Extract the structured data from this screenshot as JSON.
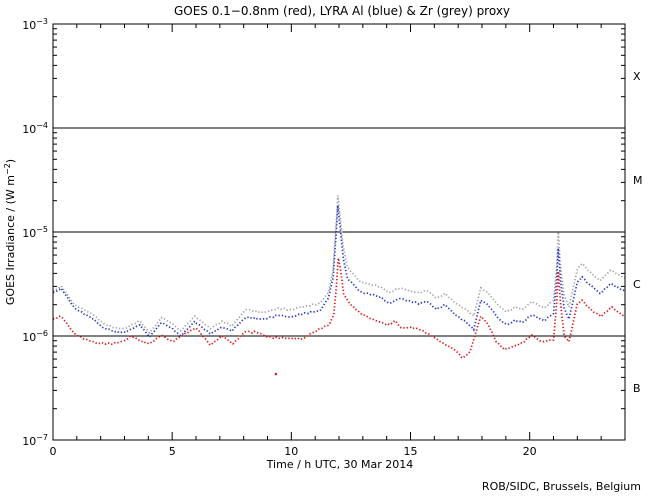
{
  "footer": "ROB/SIDC, Brussels, Belgium",
  "chart_data": {
    "type": "line",
    "style": "dotted",
    "title": "GOES 0.1−0.8nm (red), LYRA Al (blue) & Zr (grey) proxy",
    "xlabel": "Time / h UTC, 30 Mar 2014",
    "ylabel": "GOES Irradiance / (W m−2)",
    "ylabel_parts": {
      "pre": "GOES Irradiance / (W m",
      "sup": "−2",
      "post": ")"
    },
    "x_range": [
      0,
      24
    ],
    "y_range": [
      1e-07,
      0.001
    ],
    "x_major_ticks": [
      0,
      5,
      10,
      15,
      20
    ],
    "x_minor_step": 1,
    "y_scale": "log",
    "y_tick_base": "10",
    "y_tick_exponents": [
      "−3",
      "−4",
      "−5",
      "−6",
      "−7"
    ],
    "reference_lines": [
      0.0001,
      1e-05,
      1e-06
    ],
    "flare_class_labels": [
      {
        "label": "X",
        "band": [
          0.0001,
          0.001
        ]
      },
      {
        "label": "M",
        "band": [
          1e-05,
          0.0001
        ]
      },
      {
        "label": "C",
        "band": [
          1e-06,
          1e-05
        ]
      },
      {
        "label": "B",
        "band": [
          1e-07,
          1e-06
        ]
      }
    ],
    "grid": false,
    "series": [
      {
        "name": "LYRA Zr proxy",
        "color_key": "grey",
        "color": "#a3a3a3",
        "points": [
          [
            0,
            2.7e-06
          ],
          [
            0.35,
            3e-06
          ],
          [
            0.9,
            2e-06
          ],
          [
            1.7,
            1.6e-06
          ],
          [
            2.1,
            1.32e-06
          ],
          [
            2.6,
            1.2e-06
          ],
          [
            3.0,
            1.17e-06
          ],
          [
            3.3,
            1.28e-06
          ],
          [
            3.65,
            1.4e-06
          ],
          [
            4.05,
            1.07e-06
          ],
          [
            4.55,
            1.5e-06
          ],
          [
            5.0,
            1.32e-06
          ],
          [
            5.35,
            1.12e-06
          ],
          [
            5.95,
            1.55e-06
          ],
          [
            6.6,
            1.18e-06
          ],
          [
            7.1,
            1.38e-06
          ],
          [
            7.5,
            1.25e-06
          ],
          [
            8.1,
            1.8e-06
          ],
          [
            8.8,
            1.68e-06
          ],
          [
            9.5,
            1.85e-06
          ],
          [
            10.0,
            1.78e-06
          ],
          [
            10.4,
            1.9e-06
          ],
          [
            11.2,
            2.05e-06
          ],
          [
            11.55,
            2.6e-06
          ],
          [
            11.75,
            4.2e-06
          ],
          [
            11.87,
            1.1e-05
          ],
          [
            11.95,
            2.25e-05
          ],
          [
            12.05,
            1.4e-05
          ],
          [
            12.18,
            7.2e-06
          ],
          [
            12.35,
            4.6e-06
          ],
          [
            12.9,
            3.3e-06
          ],
          [
            13.4,
            3.1e-06
          ],
          [
            13.75,
            2.95e-06
          ],
          [
            14.1,
            2.6e-06
          ],
          [
            14.55,
            2.9e-06
          ],
          [
            15.0,
            2.7e-06
          ],
          [
            15.35,
            2.6e-06
          ],
          [
            15.7,
            2.75e-06
          ],
          [
            16.1,
            2.3e-06
          ],
          [
            16.45,
            2.55e-06
          ],
          [
            16.85,
            2.1e-06
          ],
          [
            17.4,
            1.75e-06
          ],
          [
            17.65,
            1.55e-06
          ],
          [
            17.95,
            2.9e-06
          ],
          [
            18.25,
            2.6e-06
          ],
          [
            18.75,
            1.9e-06
          ],
          [
            19.05,
            1.7e-06
          ],
          [
            19.4,
            1.9e-06
          ],
          [
            19.7,
            1.8e-06
          ],
          [
            20.1,
            2.15e-06
          ],
          [
            20.6,
            1.85e-06
          ],
          [
            21.0,
            2.2e-06
          ],
          [
            21.13,
            4.5e-06
          ],
          [
            21.2,
            1e-05
          ],
          [
            21.3,
            4.5e-06
          ],
          [
            21.45,
            2.45e-06
          ],
          [
            21.65,
            1.9e-06
          ],
          [
            22.0,
            4.4e-06
          ],
          [
            22.2,
            5e-06
          ],
          [
            22.45,
            4.3e-06
          ],
          [
            22.7,
            3.8e-06
          ],
          [
            22.95,
            3.4e-06
          ],
          [
            23.4,
            4.3e-06
          ],
          [
            23.7,
            3.9e-06
          ],
          [
            24,
            3.6e-06
          ]
        ]
      },
      {
        "name": "LYRA Al proxy",
        "color_key": "blue",
        "color": "#2233cc",
        "points": [
          [
            0,
            2.6e-06
          ],
          [
            0.35,
            2.85e-06
          ],
          [
            0.9,
            1.85e-06
          ],
          [
            1.7,
            1.45e-06
          ],
          [
            2.1,
            1.2e-06
          ],
          [
            2.6,
            1.1e-06
          ],
          [
            3.0,
            1.08e-06
          ],
          [
            3.3,
            1.17e-06
          ],
          [
            3.65,
            1.28e-06
          ],
          [
            4.05,
            9.8e-07
          ],
          [
            4.55,
            1.35e-06
          ],
          [
            5.0,
            1.18e-06
          ],
          [
            5.35,
            1e-06
          ],
          [
            5.95,
            1.38e-06
          ],
          [
            6.6,
            1.05e-06
          ],
          [
            7.1,
            1.22e-06
          ],
          [
            7.5,
            1.12e-06
          ],
          [
            8.1,
            1.52e-06
          ],
          [
            8.8,
            1.45e-06
          ],
          [
            9.5,
            1.58e-06
          ],
          [
            10.0,
            1.52e-06
          ],
          [
            10.4,
            1.62e-06
          ],
          [
            11.2,
            1.75e-06
          ],
          [
            11.55,
            2.3e-06
          ],
          [
            11.75,
            3.6e-06
          ],
          [
            11.87,
            9e-06
          ],
          [
            11.95,
            1.8e-05
          ],
          [
            12.05,
            1.1e-05
          ],
          [
            12.18,
            5.6e-06
          ],
          [
            12.35,
            3.6e-06
          ],
          [
            12.9,
            2.65e-06
          ],
          [
            13.4,
            2.5e-06
          ],
          [
            13.75,
            2.35e-06
          ],
          [
            14.1,
            2.05e-06
          ],
          [
            14.55,
            2.3e-06
          ],
          [
            15.0,
            2.15e-06
          ],
          [
            15.35,
            2.05e-06
          ],
          [
            15.7,
            2.15e-06
          ],
          [
            16.1,
            1.8e-06
          ],
          [
            16.45,
            2e-06
          ],
          [
            16.85,
            1.62e-06
          ],
          [
            17.4,
            1.32e-06
          ],
          [
            17.65,
            1.15e-06
          ],
          [
            17.95,
            2.2e-06
          ],
          [
            18.25,
            2e-06
          ],
          [
            18.75,
            1.42e-06
          ],
          [
            19.05,
            1.28e-06
          ],
          [
            19.4,
            1.42e-06
          ],
          [
            19.7,
            1.35e-06
          ],
          [
            20.1,
            1.6e-06
          ],
          [
            20.6,
            1.4e-06
          ],
          [
            21.0,
            1.65e-06
          ],
          [
            21.13,
            3.4e-06
          ],
          [
            21.2,
            7e-06
          ],
          [
            21.3,
            3.3e-06
          ],
          [
            21.45,
            1.85e-06
          ],
          [
            21.65,
            1.45e-06
          ],
          [
            22.0,
            3.3e-06
          ],
          [
            22.2,
            3.7e-06
          ],
          [
            22.45,
            3.2e-06
          ],
          [
            22.7,
            2.9e-06
          ],
          [
            22.95,
            2.55e-06
          ],
          [
            23.4,
            3.2e-06
          ],
          [
            23.7,
            2.9e-06
          ],
          [
            24,
            2.7e-06
          ]
        ]
      },
      {
        "name": "GOES 0.1−0.8nm",
        "color_key": "red",
        "color": "#dd1111",
        "points": [
          [
            0,
            1.45e-06
          ],
          [
            0.35,
            1.55e-06
          ],
          [
            0.9,
            1.05e-06
          ],
          [
            1.3,
            9.4e-07
          ],
          [
            1.8,
            8.6e-07
          ],
          [
            2.5,
            8.4e-07
          ],
          [
            3.0,
            9e-07
          ],
          [
            3.3,
            1e-06
          ],
          [
            3.65,
            9e-07
          ],
          [
            4.05,
            8.4e-07
          ],
          [
            4.55,
            1.02e-06
          ],
          [
            5.0,
            8.8e-07
          ],
          [
            5.7,
            1.1e-06
          ],
          [
            6.0,
            1.2e-06
          ],
          [
            6.6,
            8.2e-07
          ],
          [
            7.1,
            1e-06
          ],
          [
            7.55,
            8.4e-07
          ],
          [
            8.05,
            1.1e-06
          ],
          [
            8.6,
            1.08e-06
          ],
          [
            9.0,
            9.8e-07
          ],
          [
            9.7,
            9.5e-07
          ],
          [
            10.5,
            9.4e-07
          ],
          [
            10.8,
            1.05e-06
          ],
          [
            11.3,
            1.2e-06
          ],
          [
            11.6,
            1.3e-06
          ],
          [
            11.78,
            1.6e-06
          ],
          [
            11.88,
            2.8e-06
          ],
          [
            11.97,
            5.6e-06
          ],
          [
            12.07,
            4.3e-06
          ],
          [
            12.2,
            2.5e-06
          ],
          [
            12.5,
            2e-06
          ],
          [
            12.9,
            1.65e-06
          ],
          [
            13.4,
            1.45e-06
          ],
          [
            13.75,
            1.35e-06
          ],
          [
            14.1,
            1.28e-06
          ],
          [
            14.35,
            1.4e-06
          ],
          [
            14.6,
            1.2e-06
          ],
          [
            15.0,
            1.2e-06
          ],
          [
            15.35,
            1.17e-06
          ],
          [
            15.9,
            1e-06
          ],
          [
            16.4,
            8.4e-07
          ],
          [
            16.85,
            7.4e-07
          ],
          [
            17.2,
            6.1e-07
          ],
          [
            17.5,
            7.1e-07
          ],
          [
            17.95,
            1.55e-06
          ],
          [
            18.25,
            1.3e-06
          ],
          [
            18.6,
            8.8e-07
          ],
          [
            18.95,
            7.4e-07
          ],
          [
            19.3,
            7.9e-07
          ],
          [
            19.7,
            8.6e-07
          ],
          [
            20.1,
            1.02e-06
          ],
          [
            20.5,
            8.8e-07
          ],
          [
            21.0,
            9.2e-07
          ],
          [
            21.13,
            2e-06
          ],
          [
            21.2,
            4.2e-06
          ],
          [
            21.3,
            2e-06
          ],
          [
            21.45,
            1e-06
          ],
          [
            21.65,
            8.8e-07
          ],
          [
            22.0,
            2.05e-06
          ],
          [
            22.2,
            2.2e-06
          ],
          [
            22.45,
            1.9e-06
          ],
          [
            22.7,
            1.7e-06
          ],
          [
            23.0,
            1.55e-06
          ],
          [
            23.45,
            1.9e-06
          ],
          [
            23.7,
            1.7e-06
          ],
          [
            24,
            1.55e-06
          ]
        ]
      }
    ],
    "outliers": [
      {
        "series": "GOES 0.1−0.8nm",
        "h": 9.35,
        "value": 4.3e-07,
        "color": "#dd1111"
      }
    ]
  }
}
